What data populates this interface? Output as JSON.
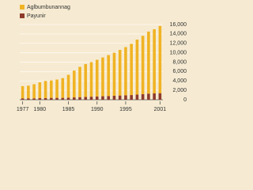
{
  "chart_data": {
    "type": "stacked_bar",
    "categories": [
      "1977",
      null,
      null,
      "1980",
      null,
      null,
      null,
      null,
      "1985",
      null,
      null,
      null,
      null,
      "1990",
      null,
      null,
      null,
      null,
      "1995",
      null,
      null,
      null,
      null,
      null,
      "2001"
    ],
    "series": [
      {
        "name": "Payunir",
        "color": "#8e3b2b",
        "values": [
          300,
          300,
          300,
          350,
          350,
          400,
          400,
          400,
          450,
          500,
          550,
          600,
          650,
          700,
          750,
          800,
          850,
          900,
          950,
          1000,
          1100,
          1200,
          1300,
          1350,
          1400
        ]
      },
      {
        "name": "Aglbumbunannag",
        "color": "#f0b323",
        "values": [
          2600,
          2700,
          3000,
          3350,
          3650,
          3700,
          3900,
          4200,
          4850,
          5700,
          6450,
          7000,
          7350,
          7800,
          8250,
          8700,
          9150,
          9700,
          10250,
          10900,
          11700,
          12400,
          13200,
          13650,
          14300
        ]
      }
    ],
    "ylim": [
      0,
      16000
    ],
    "yticks": [
      0,
      {
        "value": 2000,
        "label": "2,000"
      },
      {
        "value": 4000,
        "label": "4,000"
      },
      {
        "value": 6000,
        "label": "6,000"
      },
      {
        "value": 8000,
        "label": "8,000"
      },
      {
        "value": 10000,
        "label": "10,000"
      },
      {
        "value": 12000,
        "label": "12,000"
      },
      {
        "value": 14000,
        "label": "14,000"
      },
      {
        "value": 16000,
        "label": "16,000"
      }
    ],
    "grid": true
  }
}
